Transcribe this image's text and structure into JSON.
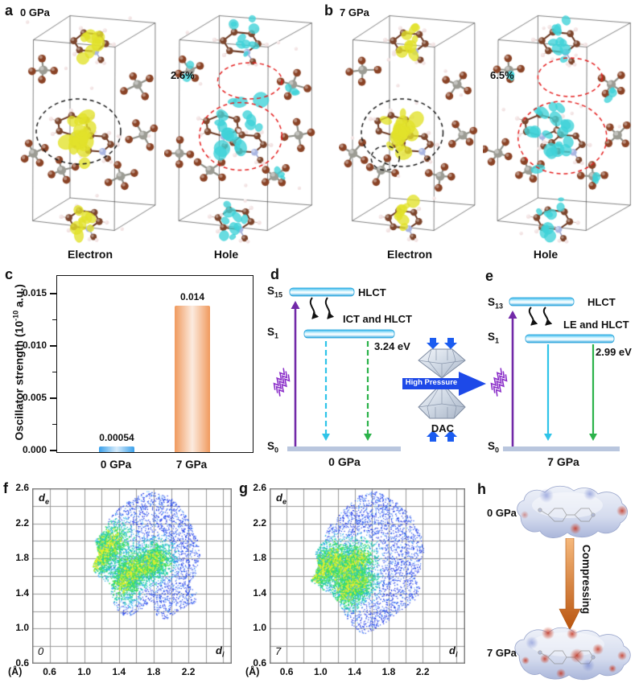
{
  "colors": {
    "electron_isosurface": "#e2e22a",
    "hole_isosurface": "#3fd2d8",
    "electron_circle": "#1a1a1a",
    "hole_circle": "#e42020",
    "bar_0gpa": "#3aa0ea",
    "bar_7gpa": "#f09a5e",
    "excitation_arrow": "#7229a8",
    "emission_cyan": "#2fc4e8",
    "emission_green": "#2bb24a",
    "pressure_arrow": "#1d49e8",
    "compress_arrow": "#d2691e",
    "level_disc": "#3cc0ee",
    "ground_bar": "#b9c6de"
  },
  "panels": {
    "a": {
      "letter": "a",
      "pressure": "0 GPa",
      "electron_caption": "Electron",
      "hole_caption": "Hole",
      "hole_transfer_percent": "2.6%"
    },
    "b": {
      "letter": "b",
      "pressure": "7 GPa",
      "electron_caption": "Electron",
      "hole_caption": "Hole",
      "hole_transfer_percent": "6.5%"
    },
    "c": {
      "letter": "c",
      "ylabel_pre": "Oscillator strength (10",
      "ylabel_sup": "-10",
      "ylabel_post": " a.u.)"
    },
    "d": {
      "letter": "d",
      "upper_s": "S",
      "upper_sub": "15",
      "upper_label": "HLCT",
      "mid_s": "S",
      "mid_sub": "1",
      "mid_label": "ICT and HLCT",
      "energy": "3.24 eV",
      "ground_s": "S",
      "ground_sub": "0",
      "pressure": "0 GPa"
    },
    "dac": {
      "arrow_label": "High Pressure",
      "caption": "DAC"
    },
    "e": {
      "letter": "e",
      "upper_s": "S",
      "upper_sub": "13",
      "upper_label": "HLCT",
      "mid_s": "S",
      "mid_sub": "1",
      "mid_label": "LE and HLCT",
      "energy": "2.99 eV",
      "ground_s": "S",
      "ground_sub": "0",
      "pressure": "7 GPa"
    },
    "f": {
      "letter": "f",
      "corner_label": "0",
      "axis_unit": "(Å)",
      "x_sym": "d",
      "x_sub": "i",
      "y_sym": "d",
      "y_sub": "e"
    },
    "g": {
      "letter": "g",
      "corner_label": "7",
      "axis_unit": "(Å)",
      "x_sym": "d",
      "x_sub": "i",
      "y_sym": "d",
      "y_sub": "e"
    },
    "h": {
      "letter": "h",
      "top_label": "0 GPa",
      "bottom_label": "7 GPa",
      "arrow_label": "Compressing"
    }
  },
  "chart_data": [
    {
      "id": "c",
      "type": "bar",
      "title": "",
      "categories": [
        "0 GPa",
        "7 GPa"
      ],
      "values": [
        0.00054,
        0.014
      ],
      "value_labels": [
        "0.00054",
        "0.014"
      ],
      "ylabel": "Oscillator strength (10⁻¹⁰ a.u.)",
      "ylim": [
        0,
        0.01675
      ],
      "yticks": [
        0,
        0.005,
        0.01,
        0.015
      ],
      "bar_colors": [
        "#3aa0ea",
        "#f09a5e"
      ],
      "grid": false
    },
    {
      "id": "f",
      "type": "scatter",
      "subtype": "hirshfeld_fingerprint",
      "corner_label": "0",
      "xlabel": "di (Å)",
      "ylabel": "de (Å)",
      "xlim": [
        0.4,
        2.7
      ],
      "ylim": [
        0.6,
        2.6
      ],
      "grid_step": 0.2,
      "xticks": [
        0.6,
        1.0,
        1.4,
        1.8,
        2.2
      ],
      "yticks": [
        0.6,
        1.0,
        1.4,
        1.8,
        2.2,
        2.6
      ],
      "point_count": 6500,
      "outline": [
        [
          1.08,
          1.7
        ],
        [
          1.16,
          1.86
        ],
        [
          1.12,
          2.02
        ],
        [
          1.22,
          2.12
        ],
        [
          1.3,
          2.3
        ],
        [
          1.5,
          2.46
        ],
        [
          1.72,
          2.57
        ],
        [
          1.95,
          2.53
        ],
        [
          2.12,
          2.38
        ],
        [
          2.22,
          2.2
        ],
        [
          2.3,
          2.02
        ],
        [
          2.33,
          1.85
        ],
        [
          2.28,
          1.62
        ],
        [
          2.2,
          1.5
        ],
        [
          2.3,
          1.42
        ],
        [
          2.28,
          1.3
        ],
        [
          2.1,
          1.22
        ],
        [
          1.95,
          1.1
        ],
        [
          1.82,
          1.16
        ],
        [
          1.78,
          1.3
        ],
        [
          1.65,
          1.22
        ],
        [
          1.5,
          1.14
        ],
        [
          1.38,
          1.18
        ],
        [
          1.32,
          1.34
        ],
        [
          1.28,
          1.52
        ],
        [
          1.18,
          1.58
        ],
        [
          1.12,
          1.64
        ]
      ],
      "hotspots": [
        [
          1.12,
          1.78,
          1.33,
          2.02
        ],
        [
          1.7,
          1.72,
          1.82,
          1.8
        ],
        [
          1.45,
          1.52,
          1.55,
          1.7
        ]
      ]
    },
    {
      "id": "g",
      "type": "scatter",
      "subtype": "hirshfeld_fingerprint",
      "corner_label": "7",
      "xlabel": "di (Å)",
      "ylabel": "de (Å)",
      "xlim": [
        0.4,
        2.7
      ],
      "ylim": [
        0.6,
        2.6
      ],
      "grid_step": 0.2,
      "xticks": [
        0.6,
        1.0,
        1.4,
        1.8,
        2.2
      ],
      "yticks": [
        0.6,
        1.0,
        1.4,
        1.8,
        2.2,
        2.6
      ],
      "point_count": 7000,
      "outline": [
        [
          0.88,
          1.55
        ],
        [
          0.97,
          1.72
        ],
        [
          0.93,
          1.88
        ],
        [
          1.02,
          2.0
        ],
        [
          1.1,
          2.18
        ],
        [
          1.28,
          2.38
        ],
        [
          1.45,
          2.52
        ],
        [
          1.62,
          2.58
        ],
        [
          1.8,
          2.5
        ],
        [
          1.98,
          2.38
        ],
        [
          2.1,
          2.22
        ],
        [
          2.18,
          2.05
        ],
        [
          2.22,
          1.88
        ],
        [
          2.18,
          1.7
        ],
        [
          2.1,
          1.58
        ],
        [
          2.18,
          1.45
        ],
        [
          2.1,
          1.32
        ],
        [
          1.95,
          1.22
        ],
        [
          1.8,
          1.1
        ],
        [
          1.65,
          1.0
        ],
        [
          1.5,
          0.94
        ],
        [
          1.38,
          1.02
        ],
        [
          1.3,
          1.12
        ],
        [
          1.22,
          1.28
        ],
        [
          1.12,
          1.4
        ],
        [
          1.0,
          1.46
        ]
      ],
      "hotspots": [
        [
          0.95,
          1.62,
          1.18,
          1.82
        ],
        [
          1.25,
          1.66,
          1.45,
          1.8
        ],
        [
          1.3,
          1.44,
          1.45,
          1.55
        ]
      ]
    }
  ]
}
